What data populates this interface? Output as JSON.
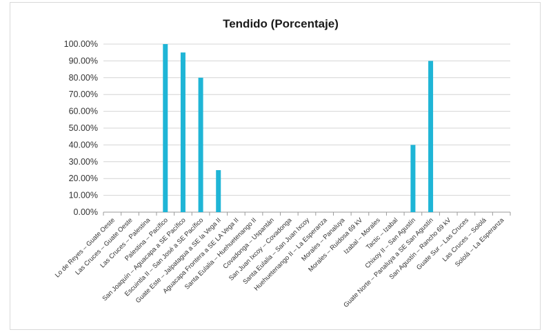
{
  "chart_data": {
    "type": "bar",
    "title": "Tendido (Porcentaje)",
    "xlabel": "",
    "ylabel": "",
    "ylim": [
      0,
      100
    ],
    "y_ticks": [
      "0.00%",
      "10.00%",
      "20.00%",
      "30.00%",
      "40.00%",
      "50.00%",
      "60.00%",
      "70.00%",
      "80.00%",
      "90.00%",
      "100.00%"
    ],
    "grid": true,
    "legend": "none",
    "bar_color": "#1fb5d6",
    "categories": [
      "Lo de Reyes – Guate Oeste",
      "Las Cruces – Guate Oeste",
      "Las Cruces – Palestina",
      "Palestina – Pacífico",
      "San Joaquín – Aguacapa a SE Pacífico",
      "Escuintla II – San José a SE Pacífico",
      "Guate Este – Jalpatagua a SE la Vega II",
      "Aguacapa Frontera a SE LA Vega II",
      "Santa Eulalia – Huehuetenango II",
      "Covadonga – Uspantán",
      "San Juan Ixcoy – Covadonga",
      "Santa Eulalia – San Juan Ixcoy",
      "Huehuetenango II – La Esperanza",
      "Morales – Panaluya",
      "Morales – Ruidosa 69 kV",
      "Izabal – Morales",
      "Tactic – Izabal",
      "Chixoy II – San Agustín",
      "Guate Norte – Panaluya a SE San Agustín",
      "San Agustín – Rancho 69 kV",
      "Guate Sur – Las Cruces",
      "Las Cruces – Sololá",
      "Sololá – La Esperanza"
    ],
    "values": [
      0,
      0,
      0,
      100,
      95,
      80,
      25,
      0,
      0,
      0,
      0,
      0,
      0,
      0,
      0,
      0,
      0,
      40,
      90,
      0,
      0,
      0,
      0
    ]
  }
}
